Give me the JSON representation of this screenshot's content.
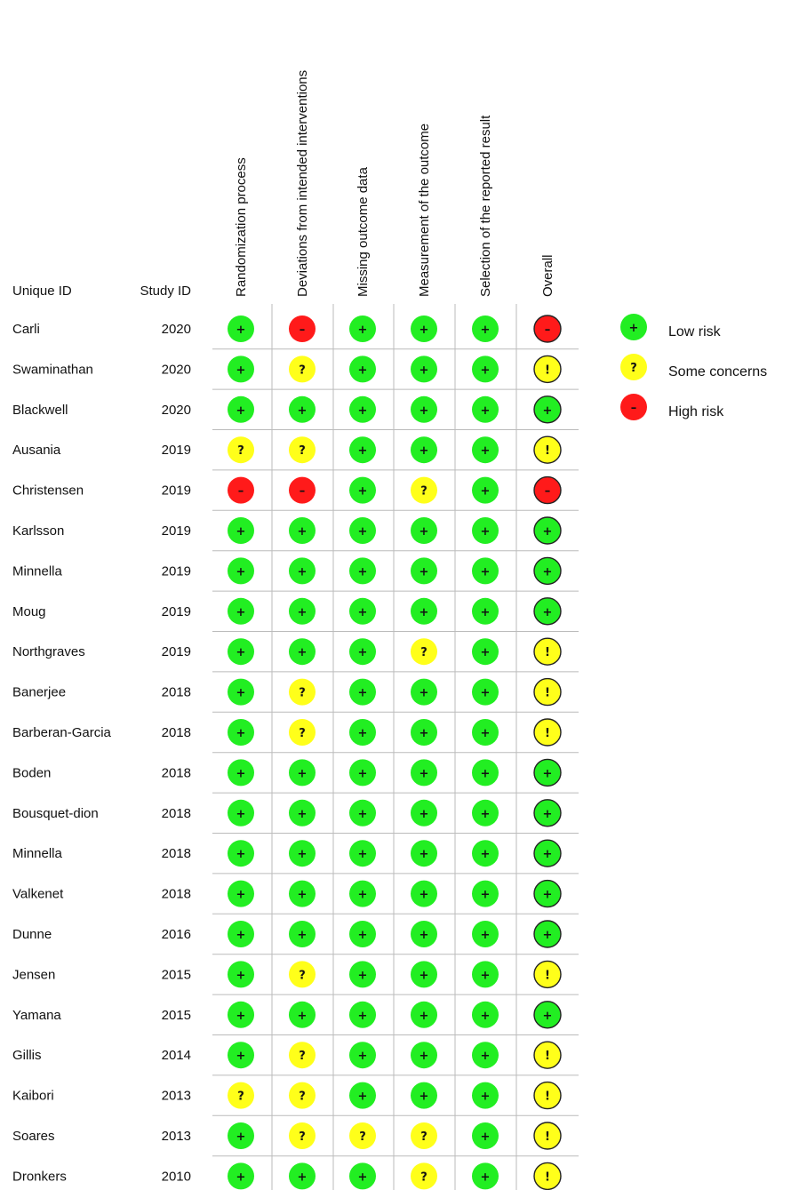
{
  "chart_data": {
    "type": "table",
    "row_header_label": "Unique ID",
    "year_header_label": "Study ID",
    "domains": [
      "Randomization process",
      "Deviations from intended interventions",
      "Missing outcome data",
      "Measurement of the outcome",
      "Selection of the reported result",
      "Overall"
    ],
    "rows": [
      {
        "id": "Carli",
        "year": "2020",
        "judgements": [
          "low",
          "high",
          "low",
          "low",
          "low",
          "high"
        ]
      },
      {
        "id": "Swaminathan",
        "year": "2020",
        "judgements": [
          "low",
          "some",
          "low",
          "low",
          "low",
          "some"
        ]
      },
      {
        "id": "Blackwell",
        "year": "2020",
        "judgements": [
          "low",
          "low",
          "low",
          "low",
          "low",
          "low"
        ]
      },
      {
        "id": "Ausania",
        "year": "2019",
        "judgements": [
          "some",
          "some",
          "low",
          "low",
          "low",
          "some"
        ]
      },
      {
        "id": "Christensen",
        "year": "2019",
        "judgements": [
          "high",
          "high",
          "low",
          "some",
          "low",
          "high"
        ]
      },
      {
        "id": "Karlsson",
        "year": "2019",
        "judgements": [
          "low",
          "low",
          "low",
          "low",
          "low",
          "low"
        ]
      },
      {
        "id": "Minnella",
        "year": "2019",
        "judgements": [
          "low",
          "low",
          "low",
          "low",
          "low",
          "low"
        ]
      },
      {
        "id": "Moug",
        "year": "2019",
        "judgements": [
          "low",
          "low",
          "low",
          "low",
          "low",
          "low"
        ]
      },
      {
        "id": "Northgraves",
        "year": "2019",
        "judgements": [
          "low",
          "low",
          "low",
          "some",
          "low",
          "some"
        ]
      },
      {
        "id": "Banerjee",
        "year": "2018",
        "judgements": [
          "low",
          "some",
          "low",
          "low",
          "low",
          "some"
        ]
      },
      {
        "id": "Barberan-Garcia",
        "year": "2018",
        "judgements": [
          "low",
          "some",
          "low",
          "low",
          "low",
          "some"
        ]
      },
      {
        "id": "Boden",
        "year": "2018",
        "judgements": [
          "low",
          "low",
          "low",
          "low",
          "low",
          "low"
        ]
      },
      {
        "id": "Bousquet-dion",
        "year": "2018",
        "judgements": [
          "low",
          "low",
          "low",
          "low",
          "low",
          "low"
        ]
      },
      {
        "id": "Minnella",
        "year": "2018",
        "judgements": [
          "low",
          "low",
          "low",
          "low",
          "low",
          "low"
        ]
      },
      {
        "id": "Valkenet",
        "year": "2018",
        "judgements": [
          "low",
          "low",
          "low",
          "low",
          "low",
          "low"
        ]
      },
      {
        "id": "Dunne",
        "year": "2016",
        "judgements": [
          "low",
          "low",
          "low",
          "low",
          "low",
          "low"
        ]
      },
      {
        "id": "Jensen",
        "year": "2015",
        "judgements": [
          "low",
          "some",
          "low",
          "low",
          "low",
          "some"
        ]
      },
      {
        "id": "Yamana",
        "year": "2015",
        "judgements": [
          "low",
          "low",
          "low",
          "low",
          "low",
          "low"
        ]
      },
      {
        "id": "Gillis",
        "year": "2014",
        "judgements": [
          "low",
          "some",
          "low",
          "low",
          "low",
          "some"
        ]
      },
      {
        "id": "Kaibori",
        "year": "2013",
        "judgements": [
          "some",
          "some",
          "low",
          "low",
          "low",
          "some"
        ]
      },
      {
        "id": "Soares",
        "year": "2013",
        "judgements": [
          "low",
          "some",
          "some",
          "some",
          "low",
          "some"
        ]
      },
      {
        "id": "Dronkers",
        "year": "2010",
        "judgements": [
          "low",
          "low",
          "low",
          "some",
          "low",
          "some"
        ]
      }
    ],
    "judgement_styles": {
      "low": {
        "color": "#22ee22",
        "symbol": "+",
        "overall_symbol": "+"
      },
      "some": {
        "color": "#ffff1a",
        "symbol": "?",
        "overall_symbol": "!"
      },
      "high": {
        "color": "#ff1a1a",
        "symbol": "–",
        "overall_symbol": "–"
      }
    },
    "legend": [
      {
        "judgement": "low",
        "label": "Low risk"
      },
      {
        "judgement": "some",
        "label": "Some concerns"
      },
      {
        "judgement": "high",
        "label": "High risk"
      }
    ],
    "legend_placement": "top-right",
    "grid_color": "#bbbbbb"
  }
}
